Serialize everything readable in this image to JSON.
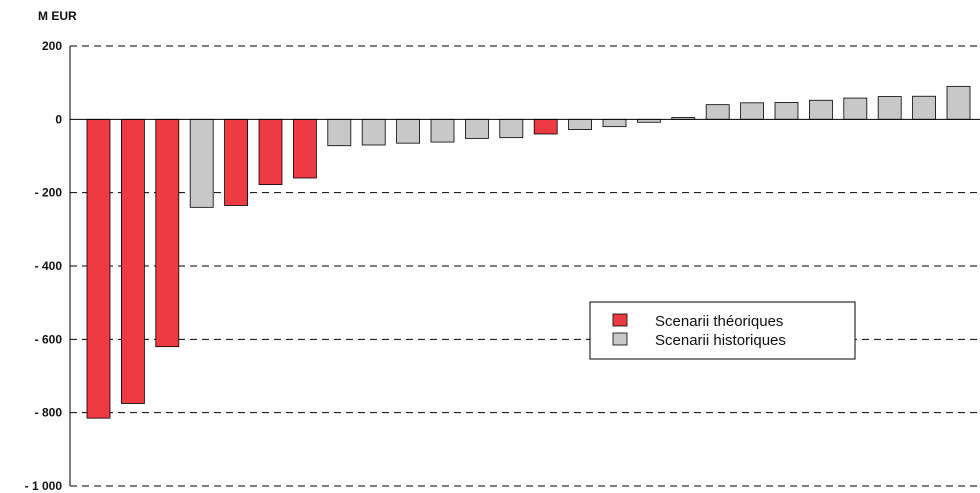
{
  "chart_data": {
    "type": "bar",
    "ylabel": "M EUR",
    "ylim": [
      -1000,
      200
    ],
    "yticks": [
      200,
      0,
      -200,
      -400,
      -600,
      -800,
      -1000
    ],
    "ytick_labels": [
      "200",
      "0",
      "- 200",
      "- 400",
      "- 600",
      "- 800",
      "- 1 000"
    ],
    "grid": true,
    "legend_position": "center-right",
    "series": [
      {
        "name": "Scenarii théoriques",
        "color": "#ee3a43"
      },
      {
        "name": "Scenarii historiques",
        "color": "#c8c8c8"
      }
    ],
    "bars": [
      {
        "value": -815,
        "series": 0
      },
      {
        "value": -775,
        "series": 0
      },
      {
        "value": -620,
        "series": 0
      },
      {
        "value": -240,
        "series": 1
      },
      {
        "value": -235,
        "series": 0
      },
      {
        "value": -178,
        "series": 0
      },
      {
        "value": -160,
        "series": 0
      },
      {
        "value": -72,
        "series": 1
      },
      {
        "value": -70,
        "series": 1
      },
      {
        "value": -65,
        "series": 1
      },
      {
        "value": -62,
        "series": 1
      },
      {
        "value": -52,
        "series": 1
      },
      {
        "value": -50,
        "series": 1
      },
      {
        "value": -40,
        "series": 0
      },
      {
        "value": -28,
        "series": 1
      },
      {
        "value": -20,
        "series": 1
      },
      {
        "value": -8,
        "series": 1
      },
      {
        "value": 5,
        "series": 1
      },
      {
        "value": 40,
        "series": 1
      },
      {
        "value": 45,
        "series": 1
      },
      {
        "value": 46,
        "series": 1
      },
      {
        "value": 52,
        "series": 1
      },
      {
        "value": 58,
        "series": 1
      },
      {
        "value": 62,
        "series": 1
      },
      {
        "value": 63,
        "series": 1
      },
      {
        "value": 90,
        "series": 1
      }
    ]
  }
}
